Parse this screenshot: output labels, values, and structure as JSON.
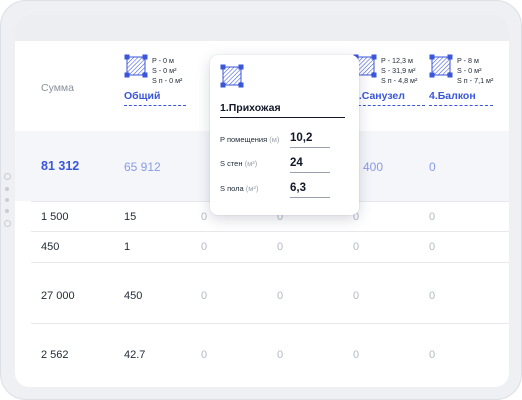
{
  "table": {
    "sum_header": "Сумма",
    "rooms": [
      {
        "name": "Общий",
        "p": "P - 0 м",
        "s": "S - 0 м²",
        "sn": "S п - 0 м²"
      },
      {
        "name": "3.Санузел",
        "p": "P - 12,3 м",
        "s": "S - 31,9 м²",
        "sn": "S п - 4,8 м²"
      },
      {
        "name": "4.Балкон",
        "p": "P - 8 м",
        "s": "S - 0 м²",
        "sn": "S п - 7,1 м²"
      }
    ],
    "partial_stat": "²",
    "sum_row": {
      "total": "81 312",
      "general": "65 912",
      "bath": "1 400",
      "balcony": "0"
    },
    "rows": [
      {
        "sum": "1 500",
        "general": "15",
        "c3": "0",
        "c4": "0",
        "c5": "0",
        "c6": "0"
      },
      {
        "sum": "450",
        "general": "1",
        "c3": "0",
        "c4": "0",
        "c5": "0",
        "c6": "0"
      },
      {
        "sum": "27 000",
        "general": "450",
        "c3": "0",
        "c4": "0",
        "c5": "0",
        "c6": "0"
      },
      {
        "sum": "2 562",
        "general": "42.7",
        "c3": "0",
        "c4": "0",
        "c5": "0",
        "c6": "0"
      }
    ]
  },
  "popup": {
    "title": "1.Прихожая",
    "fields": [
      {
        "label": "P помещения",
        "unit": "(м)",
        "value": "10,2"
      },
      {
        "label": "S стен",
        "unit": "(м²)",
        "value": "24"
      },
      {
        "label": "S пола",
        "unit": "(м²)",
        "value": "6,3"
      }
    ]
  },
  "icons": {
    "room": "room-plan-icon"
  },
  "colors": {
    "accent": "#3a56d9",
    "sum_light": "#8a9be6",
    "muted": "#b3b9c4"
  }
}
